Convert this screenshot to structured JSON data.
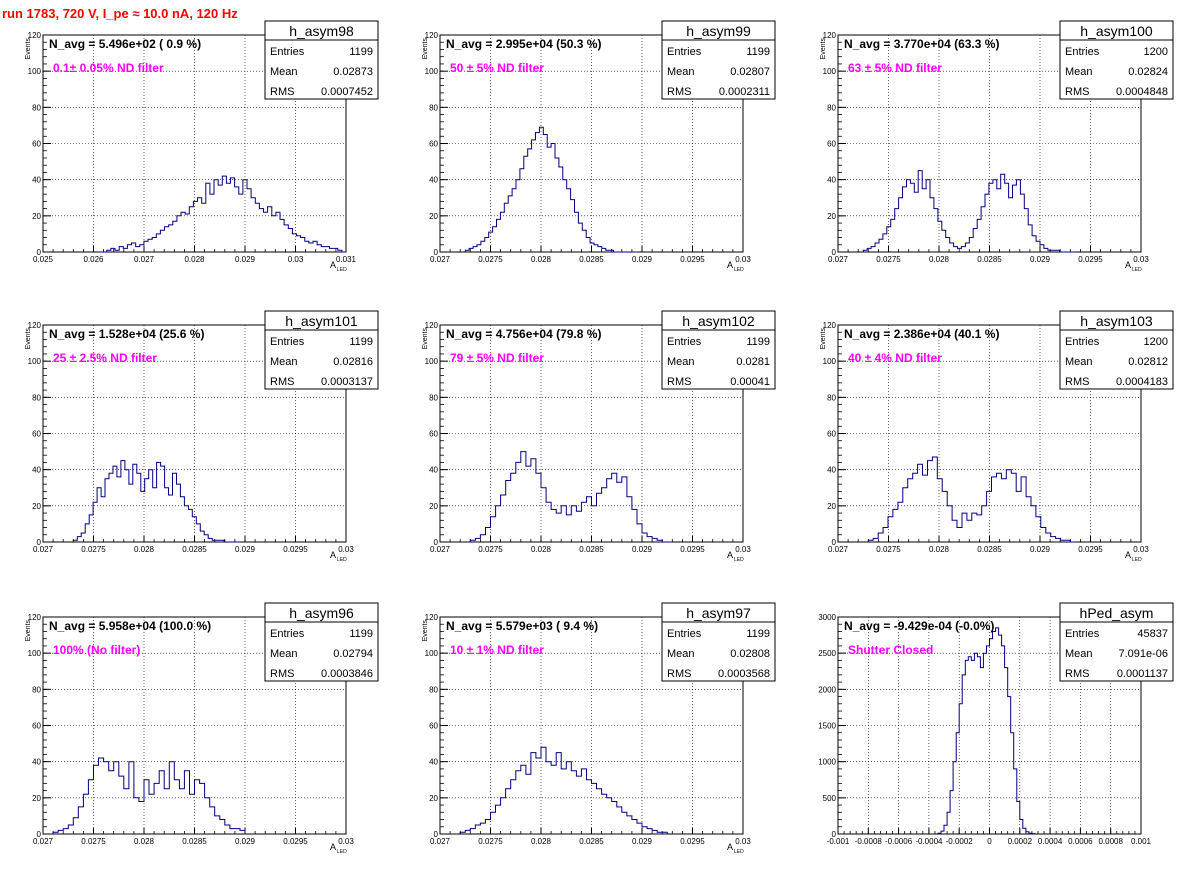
{
  "page": {
    "title": "run 1783,   720 V, I_pe ≈ 10.0 nA, 120 Hz"
  },
  "colors": {
    "title": "#ff0000",
    "histogram": "#000080",
    "annotation": "#ff00ff"
  },
  "chart_data": [
    {
      "type": "histogram",
      "name": "h_asym98",
      "navg": "N_avg = 5.496e+02 ( 0.9 %)",
      "filter": "0.1± 0.05% ND filter",
      "stats": {
        "Entries": "1199",
        "Mean": "0.02873",
        "RMS": "0.0007452"
      },
      "xlabel": "A",
      "xlabel_sub": "LED",
      "ylabel": "Events",
      "xlim": [
        0.025,
        0.031
      ],
      "ylim": [
        0,
        120
      ],
      "xticks": [
        0.025,
        0.026,
        0.027,
        0.028,
        0.029,
        0.03,
        0.031
      ],
      "xticklabels": [
        "0.025",
        "0.026",
        "0.027",
        "0.028",
        "0.029",
        "0.03",
        "0.031"
      ],
      "yticks": [
        0,
        20,
        40,
        60,
        80,
        100,
        120
      ],
      "yticklabels": [
        "0",
        "20",
        "40",
        "60",
        "80",
        "100",
        "120"
      ],
      "bins": {
        "xmin": 0.0261,
        "xmax": 0.031,
        "values": [
          0,
          0,
          1,
          2,
          1,
          3,
          2,
          4,
          5,
          3,
          4,
          6,
          7,
          8,
          10,
          12,
          14,
          15,
          17,
          20,
          22,
          21,
          25,
          28,
          30,
          27,
          38,
          32,
          40,
          37,
          42,
          38,
          41,
          36,
          32,
          40,
          35,
          30,
          27,
          24,
          22,
          25,
          20,
          22,
          18,
          15,
          13,
          10,
          9,
          8,
          6,
          5,
          6,
          4,
          3,
          3,
          2,
          2,
          1,
          0
        ]
      }
    },
    {
      "type": "histogram",
      "name": "h_asym99",
      "navg": "N_avg = 2.995e+04 (50.3 %)",
      "filter": "50 ± 5% ND filter",
      "stats": {
        "Entries": "1199",
        "Mean": "0.02807",
        "RMS": "0.0002311"
      },
      "xlabel": "A",
      "xlabel_sub": "LED",
      "ylabel": "Events",
      "xlim": [
        0.027,
        0.03
      ],
      "ylim": [
        0,
        120
      ],
      "xticks": [
        0.027,
        0.0275,
        0.028,
        0.0285,
        0.029,
        0.0295,
        0.03
      ],
      "xticklabels": [
        "0.027",
        "0.0275",
        "0.028",
        "0.0285",
        "0.029",
        "0.0295",
        "0.03"
      ],
      "yticks": [
        0,
        20,
        40,
        60,
        80,
        100,
        120
      ],
      "yticklabels": [
        "0",
        "20",
        "40",
        "60",
        "80",
        "100",
        "120"
      ],
      "bins": {
        "xmin": 0.02725,
        "xmax": 0.02895,
        "values": [
          1,
          2,
          3,
          4,
          6,
          8,
          11,
          14,
          18,
          22,
          27,
          31,
          35,
          40,
          46,
          53,
          57,
          62,
          66,
          69,
          65,
          58,
          60,
          52,
          47,
          40,
          35,
          29,
          22,
          16,
          12,
          8,
          5,
          4,
          3,
          2,
          1,
          1,
          0,
          0,
          0,
          0,
          0,
          0
        ]
      }
    },
    {
      "type": "histogram",
      "name": "h_asym100",
      "navg": "N_avg = 3.770e+04 (63.3 %)",
      "filter": "63 ± 5% ND filter",
      "stats": {
        "Entries": "1200",
        "Mean": "0.02824",
        "RMS": "0.0004848"
      },
      "xlabel": "A",
      "xlabel_sub": "LED",
      "ylabel": "Events",
      "xlim": [
        0.027,
        0.03
      ],
      "ylim": [
        0,
        120
      ],
      "xticks": [
        0.027,
        0.0275,
        0.028,
        0.0285,
        0.029,
        0.0295,
        0.03
      ],
      "xticklabels": [
        "0.027",
        "0.0275",
        "0.028",
        "0.0285",
        "0.029",
        "0.0295",
        "0.03"
      ],
      "yticks": [
        0,
        20,
        40,
        60,
        80,
        100,
        120
      ],
      "yticklabels": [
        "0",
        "20",
        "40",
        "60",
        "80",
        "100",
        "120"
      ],
      "bins": {
        "xmin": 0.02725,
        "xmax": 0.02935,
        "values": [
          1,
          2,
          3,
          5,
          7,
          10,
          14,
          18,
          24,
          30,
          36,
          40,
          38,
          33,
          45,
          35,
          40,
          30,
          24,
          17,
          12,
          8,
          5,
          3,
          2,
          3,
          5,
          8,
          13,
          18,
          25,
          32,
          38,
          40,
          35,
          43,
          38,
          30,
          37,
          40,
          32,
          24,
          15,
          9,
          6,
          4,
          2,
          1,
          1,
          1,
          0,
          0,
          0,
          0
        ]
      }
    },
    {
      "type": "histogram",
      "name": "h_asym101",
      "navg": "N_avg = 1.528e+04 (25.6 %)",
      "filter": "25 ± 2.5% ND filter",
      "stats": {
        "Entries": "1199",
        "Mean": "0.02816",
        "RMS": "0.0003137"
      },
      "xlabel": "A",
      "xlabel_sub": "LED",
      "ylabel": "Events",
      "xlim": [
        0.027,
        0.03
      ],
      "ylim": [
        0,
        120
      ],
      "xticks": [
        0.027,
        0.0275,
        0.028,
        0.0285,
        0.029,
        0.0295,
        0.03
      ],
      "xticklabels": [
        "0.027",
        "0.0275",
        "0.028",
        "0.0285",
        "0.029",
        "0.0295",
        "0.03"
      ],
      "yticks": [
        0,
        20,
        40,
        60,
        80,
        100,
        120
      ],
      "yticklabels": [
        "0",
        "20",
        "40",
        "60",
        "80",
        "100",
        "120"
      ],
      "bins": {
        "xmin": 0.0273,
        "xmax": 0.02895,
        "values": [
          1,
          3,
          5,
          10,
          15,
          22,
          30,
          25,
          35,
          38,
          42,
          36,
          45,
          40,
          32,
          43,
          38,
          28,
          35,
          40,
          30,
          44,
          42,
          30,
          26,
          38,
          32,
          25,
          20,
          18,
          14,
          10,
          6,
          4,
          2,
          1,
          1,
          1,
          0,
          0,
          0,
          0
        ]
      }
    },
    {
      "type": "histogram",
      "name": "h_asym102",
      "navg": "N_avg = 4.756e+04 (79.8 %)",
      "filter": "79 ± 5% ND filter",
      "stats": {
        "Entries": "1199",
        "Mean": "0.0281",
        "RMS": "0.00041"
      },
      "xlabel": "A",
      "xlabel_sub": "LED",
      "ylabel": "Events",
      "xlim": [
        0.027,
        0.03
      ],
      "ylim": [
        0,
        120
      ],
      "xticks": [
        0.027,
        0.0275,
        0.028,
        0.0285,
        0.029,
        0.0295,
        0.03
      ],
      "xticklabels": [
        "0.027",
        "0.0275",
        "0.028",
        "0.0285",
        "0.029",
        "0.0295",
        "0.03"
      ],
      "yticks": [
        0,
        20,
        40,
        60,
        80,
        100,
        120
      ],
      "yticklabels": [
        "0",
        "20",
        "40",
        "60",
        "80",
        "100",
        "120"
      ],
      "bins": {
        "xmin": 0.0273,
        "xmax": 0.0293,
        "values": [
          1,
          2,
          4,
          8,
          14,
          20,
          26,
          34,
          38,
          44,
          50,
          42,
          46,
          38,
          30,
          22,
          18,
          16,
          20,
          15,
          20,
          17,
          22,
          25,
          20,
          27,
          30,
          35,
          38,
          33,
          36,
          25,
          18,
          10,
          5,
          3,
          2,
          1,
          0,
          0
        ]
      }
    },
    {
      "type": "histogram",
      "name": "h_asym103",
      "navg": "N_avg = 2.386e+04 (40.1 %)",
      "filter": "40 ± 4% ND filter",
      "stats": {
        "Entries": "1200",
        "Mean": "0.02812",
        "RMS": "0.0004183"
      },
      "xlabel": "A",
      "xlabel_sub": "LED",
      "ylabel": "Events",
      "xlim": [
        0.027,
        0.03
      ],
      "ylim": [
        0,
        120
      ],
      "xticks": [
        0.027,
        0.0275,
        0.028,
        0.0285,
        0.029,
        0.0295,
        0.03
      ],
      "xticklabels": [
        "0.027",
        "0.0275",
        "0.028",
        "0.0285",
        "0.029",
        "0.0295",
        "0.03"
      ],
      "yticks": [
        0,
        20,
        40,
        60,
        80,
        100,
        120
      ],
      "yticklabels": [
        "0",
        "20",
        "40",
        "60",
        "80",
        "100",
        "120"
      ],
      "bins": {
        "xmin": 0.0273,
        "xmax": 0.02935,
        "values": [
          1,
          2,
          5,
          8,
          14,
          18,
          22,
          30,
          35,
          38,
          43,
          37,
          45,
          47,
          35,
          28,
          20,
          12,
          8,
          16,
          12,
          16,
          15,
          20,
          28,
          36,
          38,
          35,
          40,
          38,
          28,
          36,
          25,
          20,
          14,
          8,
          5,
          3,
          2,
          1,
          1,
          0
        ]
      }
    },
    {
      "type": "histogram",
      "name": "h_asym96",
      "navg": "N_avg = 5.958e+04 (100.0 %)",
      "filter": "100% (No filter)",
      "stats": {
        "Entries": "1199",
        "Mean": "0.02794",
        "RMS": "0.0003846"
      },
      "xlabel": "A",
      "xlabel_sub": "LED",
      "ylabel": "Events",
      "xlim": [
        0.027,
        0.03
      ],
      "ylim": [
        0,
        120
      ],
      "xticks": [
        0.027,
        0.0275,
        0.028,
        0.0285,
        0.029,
        0.0295,
        0.03
      ],
      "xticklabels": [
        "0.027",
        "0.0275",
        "0.028",
        "0.0285",
        "0.029",
        "0.0295",
        "0.03"
      ],
      "yticks": [
        0,
        20,
        40,
        60,
        80,
        100,
        120
      ],
      "yticklabels": [
        "0",
        "20",
        "40",
        "60",
        "80",
        "100",
        "120"
      ],
      "bins": {
        "xmin": 0.0271,
        "xmax": 0.029,
        "values": [
          1,
          2,
          3,
          5,
          9,
          15,
          22,
          30,
          38,
          42,
          40,
          35,
          40,
          32,
          25,
          40,
          20,
          18,
          30,
          22,
          28,
          35,
          25,
          40,
          30,
          25,
          35,
          22,
          30,
          28,
          20,
          15,
          10,
          8,
          5,
          3,
          3,
          2
        ]
      }
    },
    {
      "type": "histogram",
      "name": "h_asym97",
      "navg": "N_avg = 5.579e+03 ( 9.4 %)",
      "filter": "10 ± 1% ND filter",
      "stats": {
        "Entries": "1199",
        "Mean": "0.02808",
        "RMS": "0.0003568"
      },
      "xlabel": "A",
      "xlabel_sub": "LED",
      "ylabel": "Events",
      "xlim": [
        0.027,
        0.03
      ],
      "ylim": [
        0,
        120
      ],
      "xticks": [
        0.027,
        0.0275,
        0.028,
        0.0285,
        0.029,
        0.0295,
        0.03
      ],
      "xticklabels": [
        "0.027",
        "0.0275",
        "0.028",
        "0.0285",
        "0.029",
        "0.0295",
        "0.03"
      ],
      "yticks": [
        0,
        20,
        40,
        60,
        80,
        100,
        120
      ],
      "yticklabels": [
        "0",
        "20",
        "40",
        "60",
        "80",
        "100",
        "120"
      ],
      "bins": {
        "xmin": 0.0272,
        "xmax": 0.02925,
        "values": [
          1,
          2,
          3,
          5,
          6,
          8,
          12,
          16,
          20,
          25,
          30,
          35,
          38,
          33,
          45,
          42,
          48,
          40,
          38,
          45,
          36,
          40,
          35,
          32,
          36,
          30,
          28,
          25,
          22,
          20,
          18,
          15,
          12,
          10,
          8,
          6,
          4,
          3,
          2,
          1,
          1
        ]
      }
    },
    {
      "type": "histogram",
      "name": "hPed_asym",
      "navg": "N_avg = -9.429e-04 (-0.0%)",
      "filter": "Shutter Closed",
      "stats": {
        "Entries": "45837",
        "Mean": "7.091e-06",
        "RMS": "0.0001137"
      },
      "xlabel": "",
      "xlabel_sub": "",
      "ylabel": "",
      "xlim": [
        -0.001,
        0.001
      ],
      "ylim": [
        0,
        3000
      ],
      "xticks": [
        -0.001,
        -0.0008,
        -0.0006,
        -0.0004,
        -0.0002,
        0,
        0.0002,
        0.0004,
        0.0006,
        0.0008,
        0.001
      ],
      "xticklabels": [
        "-0.001",
        "-0.0008",
        "-0.0006",
        "-0.0004",
        "-0.0002",
        "0",
        "0.0002",
        "0.0004",
        "0.0006",
        "0.0008",
        "0.001"
      ],
      "yticks": [
        0,
        500,
        1000,
        1500,
        2000,
        2500,
        3000
      ],
      "yticklabels": [
        "0",
        "500",
        "1000",
        "1500",
        "2000",
        "2500",
        "3000"
      ],
      "bins": {
        "xmin": -0.00034,
        "xmax": 0.0003,
        "values": [
          10,
          40,
          120,
          300,
          600,
          1000,
          1400,
          1800,
          2200,
          2400,
          2450,
          2400,
          2500,
          2450,
          2300,
          2500,
          2600,
          2700,
          2800,
          2850,
          2750,
          2600,
          2300,
          1900,
          1400,
          900,
          450,
          200,
          80,
          30,
          10,
          5
        ]
      }
    }
  ]
}
